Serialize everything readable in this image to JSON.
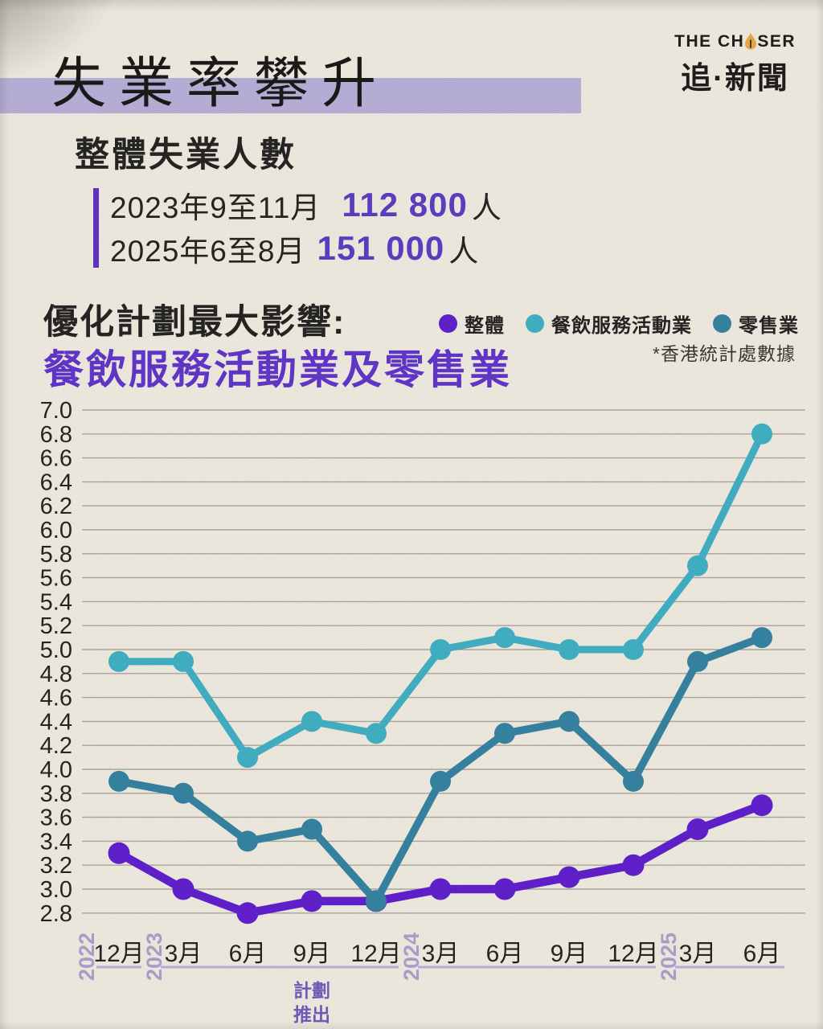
{
  "header": {
    "title": "失業率攀升",
    "logo": {
      "en_pre": "THE CH",
      "en_post": "SER",
      "zh": "追·新聞"
    }
  },
  "stats": {
    "heading": "整體失業人數",
    "rows": [
      {
        "period": "2023年9至11月",
        "value": "112 800",
        "unit": "人"
      },
      {
        "period": "2025年6至8月",
        "value": "151 000",
        "unit": "人"
      }
    ]
  },
  "impact": {
    "line1": "優化計劃最大影響:",
    "line2": "餐飲服務活動業及零售業"
  },
  "legend": [
    {
      "label": "整體",
      "color": "#5a17c9"
    },
    {
      "label": "餐飲服務活動業",
      "color": "#3aabc0"
    },
    {
      "label": "零售業",
      "color": "#2e7d9c"
    }
  ],
  "source_note": "*香港統計處數據",
  "colors": {
    "background": "#ece8dd",
    "highlight_bar": "#b4abd5",
    "accent_purple": "#5a2ec6",
    "lavender_axis": "#a49cc8",
    "gridline": "#8e887c",
    "annotation_purple": "#6b55b5",
    "nib_orange": "#e8a33c"
  },
  "chart_data": {
    "type": "line",
    "x_labels": [
      "12月",
      "3月",
      "6月",
      "9月",
      "12月",
      "3月",
      "6月",
      "9月",
      "12月",
      "3月",
      "6月"
    ],
    "year_groups": [
      {
        "year": "2022",
        "start": 0,
        "end": 0
      },
      {
        "year": "2023",
        "start": 1,
        "end": 4
      },
      {
        "year": "2024",
        "start": 5,
        "end": 8
      },
      {
        "year": "2025",
        "start": 9,
        "end": 10
      }
    ],
    "series": [
      {
        "key": "overall",
        "name": "整體",
        "color": "#5a17c9",
        "values": [
          3.3,
          3.0,
          2.8,
          2.9,
          2.9,
          3.0,
          3.0,
          3.1,
          3.2,
          3.5,
          3.7
        ]
      },
      {
        "key": "food_services",
        "name": "餐飲服務活動業",
        "color": "#3aabc0",
        "values": [
          4.9,
          4.9,
          4.1,
          4.4,
          4.3,
          5.0,
          5.1,
          5.0,
          5.0,
          5.7,
          6.8
        ]
      },
      {
        "key": "retail",
        "name": "零售業",
        "color": "#2e7d9c",
        "values": [
          3.9,
          3.8,
          3.4,
          3.5,
          2.9,
          3.9,
          4.3,
          4.4,
          3.9,
          4.9,
          5.1
        ]
      }
    ],
    "ylim": [
      2.8,
      7.0
    ],
    "ytick_step": 0.2,
    "grid": true,
    "legend_position": "top-right",
    "annotation": {
      "lines": [
        "計劃",
        "推出"
      ],
      "x_index": 3,
      "below_x_label": "9月"
    }
  }
}
